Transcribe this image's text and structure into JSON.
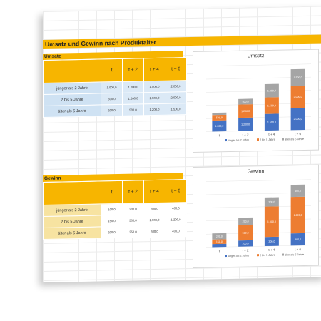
{
  "title": "Umsatz und Gewinn nach Produktalter",
  "columns": [
    "t",
    "t + 2",
    "t + 4",
    "t + 6"
  ],
  "colors": {
    "accent": "#f7b500",
    "blue": "#4472c4",
    "orange": "#ed7d31",
    "gray": "#a5a5a5"
  },
  "umsatz": {
    "label": "Umsatz",
    "rows": [
      {
        "label": "jünger als 2 Jahre",
        "values": [
          "1.000,0",
          "1.200,0",
          "1.500,0",
          "2.000,0"
        ]
      },
      {
        "label": "2 bis 5 Jahre",
        "values": [
          "500,0",
          "1.200,0",
          "1.500,0",
          "2.000,0"
        ]
      },
      {
        "label": "älter als 5 Jahre",
        "values": [
          "200,0",
          "500,0",
          "1.200,0",
          "1.500,0"
        ]
      }
    ]
  },
  "gewinn": {
    "label": "Gewinn",
    "rows": [
      {
        "label": "jünger als 2 Jahre",
        "values": [
          "100,0",
          "200,0",
          "300,0",
          "400,0"
        ]
      },
      {
        "label": "2 bis 5 Jahre",
        "values": [
          "150,0",
          "500,0",
          "1.000,0",
          "1.200,0"
        ]
      },
      {
        "label": "älter als 5 Jahre",
        "values": [
          "200,0",
          "250,0",
          "300,0",
          "400,0"
        ]
      }
    ]
  },
  "chart_data": [
    {
      "type": "bar",
      "stacked": true,
      "title": "Umsatz",
      "categories": [
        "t",
        "t + 2",
        "t + 4",
        "t + 6"
      ],
      "series": [
        {
          "name": "jünger als 2 Jahre",
          "values": [
            1000,
            1200,
            1500,
            2000
          ],
          "labels": [
            "1.000,0",
            "1.200,0",
            "1.500,0",
            "2.000,0"
          ]
        },
        {
          "name": "2 bis 5 Jahre",
          "values": [
            500,
            1200,
            1500,
            2000
          ],
          "labels": [
            "500,0",
            "1.200,0",
            "1.500,0",
            "2.000,0"
          ]
        },
        {
          "name": "älter als 5 Jahre",
          "values": [
            200,
            500,
            1200,
            1500
          ],
          "labels": [
            "200,0",
            "500,0",
            "1.200,0",
            "1.500,0"
          ]
        }
      ],
      "legend": "bottom",
      "grid": true
    },
    {
      "type": "bar",
      "stacked": true,
      "title": "Gewinn",
      "categories": [
        "t",
        "t + 2",
        "t + 4",
        "t + 6"
      ],
      "series": [
        {
          "name": "jünger als 2 Jahre",
          "values": [
            100,
            200,
            300,
            400
          ],
          "labels": [
            "100,0",
            "200,0",
            "300,0",
            "400,0"
          ]
        },
        {
          "name": "2 bis 5 Jahre",
          "values": [
            150,
            500,
            1000,
            1200
          ],
          "labels": [
            "150,0",
            "500,0",
            "1.000,0",
            "1.200,0"
          ]
        },
        {
          "name": "älter als 5 Jahre",
          "values": [
            200,
            250,
            300,
            400
          ],
          "labels": [
            "200,0",
            "250,0",
            "300,0",
            "400,0"
          ]
        }
      ],
      "legend": "bottom",
      "grid": true
    }
  ]
}
